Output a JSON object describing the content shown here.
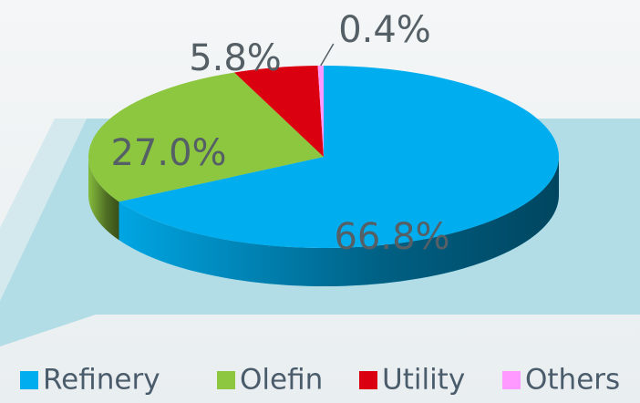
{
  "chart_data": {
    "type": "pie",
    "categories": [
      "Refinery",
      "Olefin",
      "Utility",
      "Others"
    ],
    "values": [
      66.8,
      27.0,
      5.8,
      0.4
    ],
    "value_labels": [
      "66.8%",
      "27.0%",
      "5.8%",
      "0.4%"
    ],
    "colors": [
      "#00aeef",
      "#8dc63f",
      "#db0010",
      "#ff99ff"
    ],
    "legend": "bottom"
  }
}
